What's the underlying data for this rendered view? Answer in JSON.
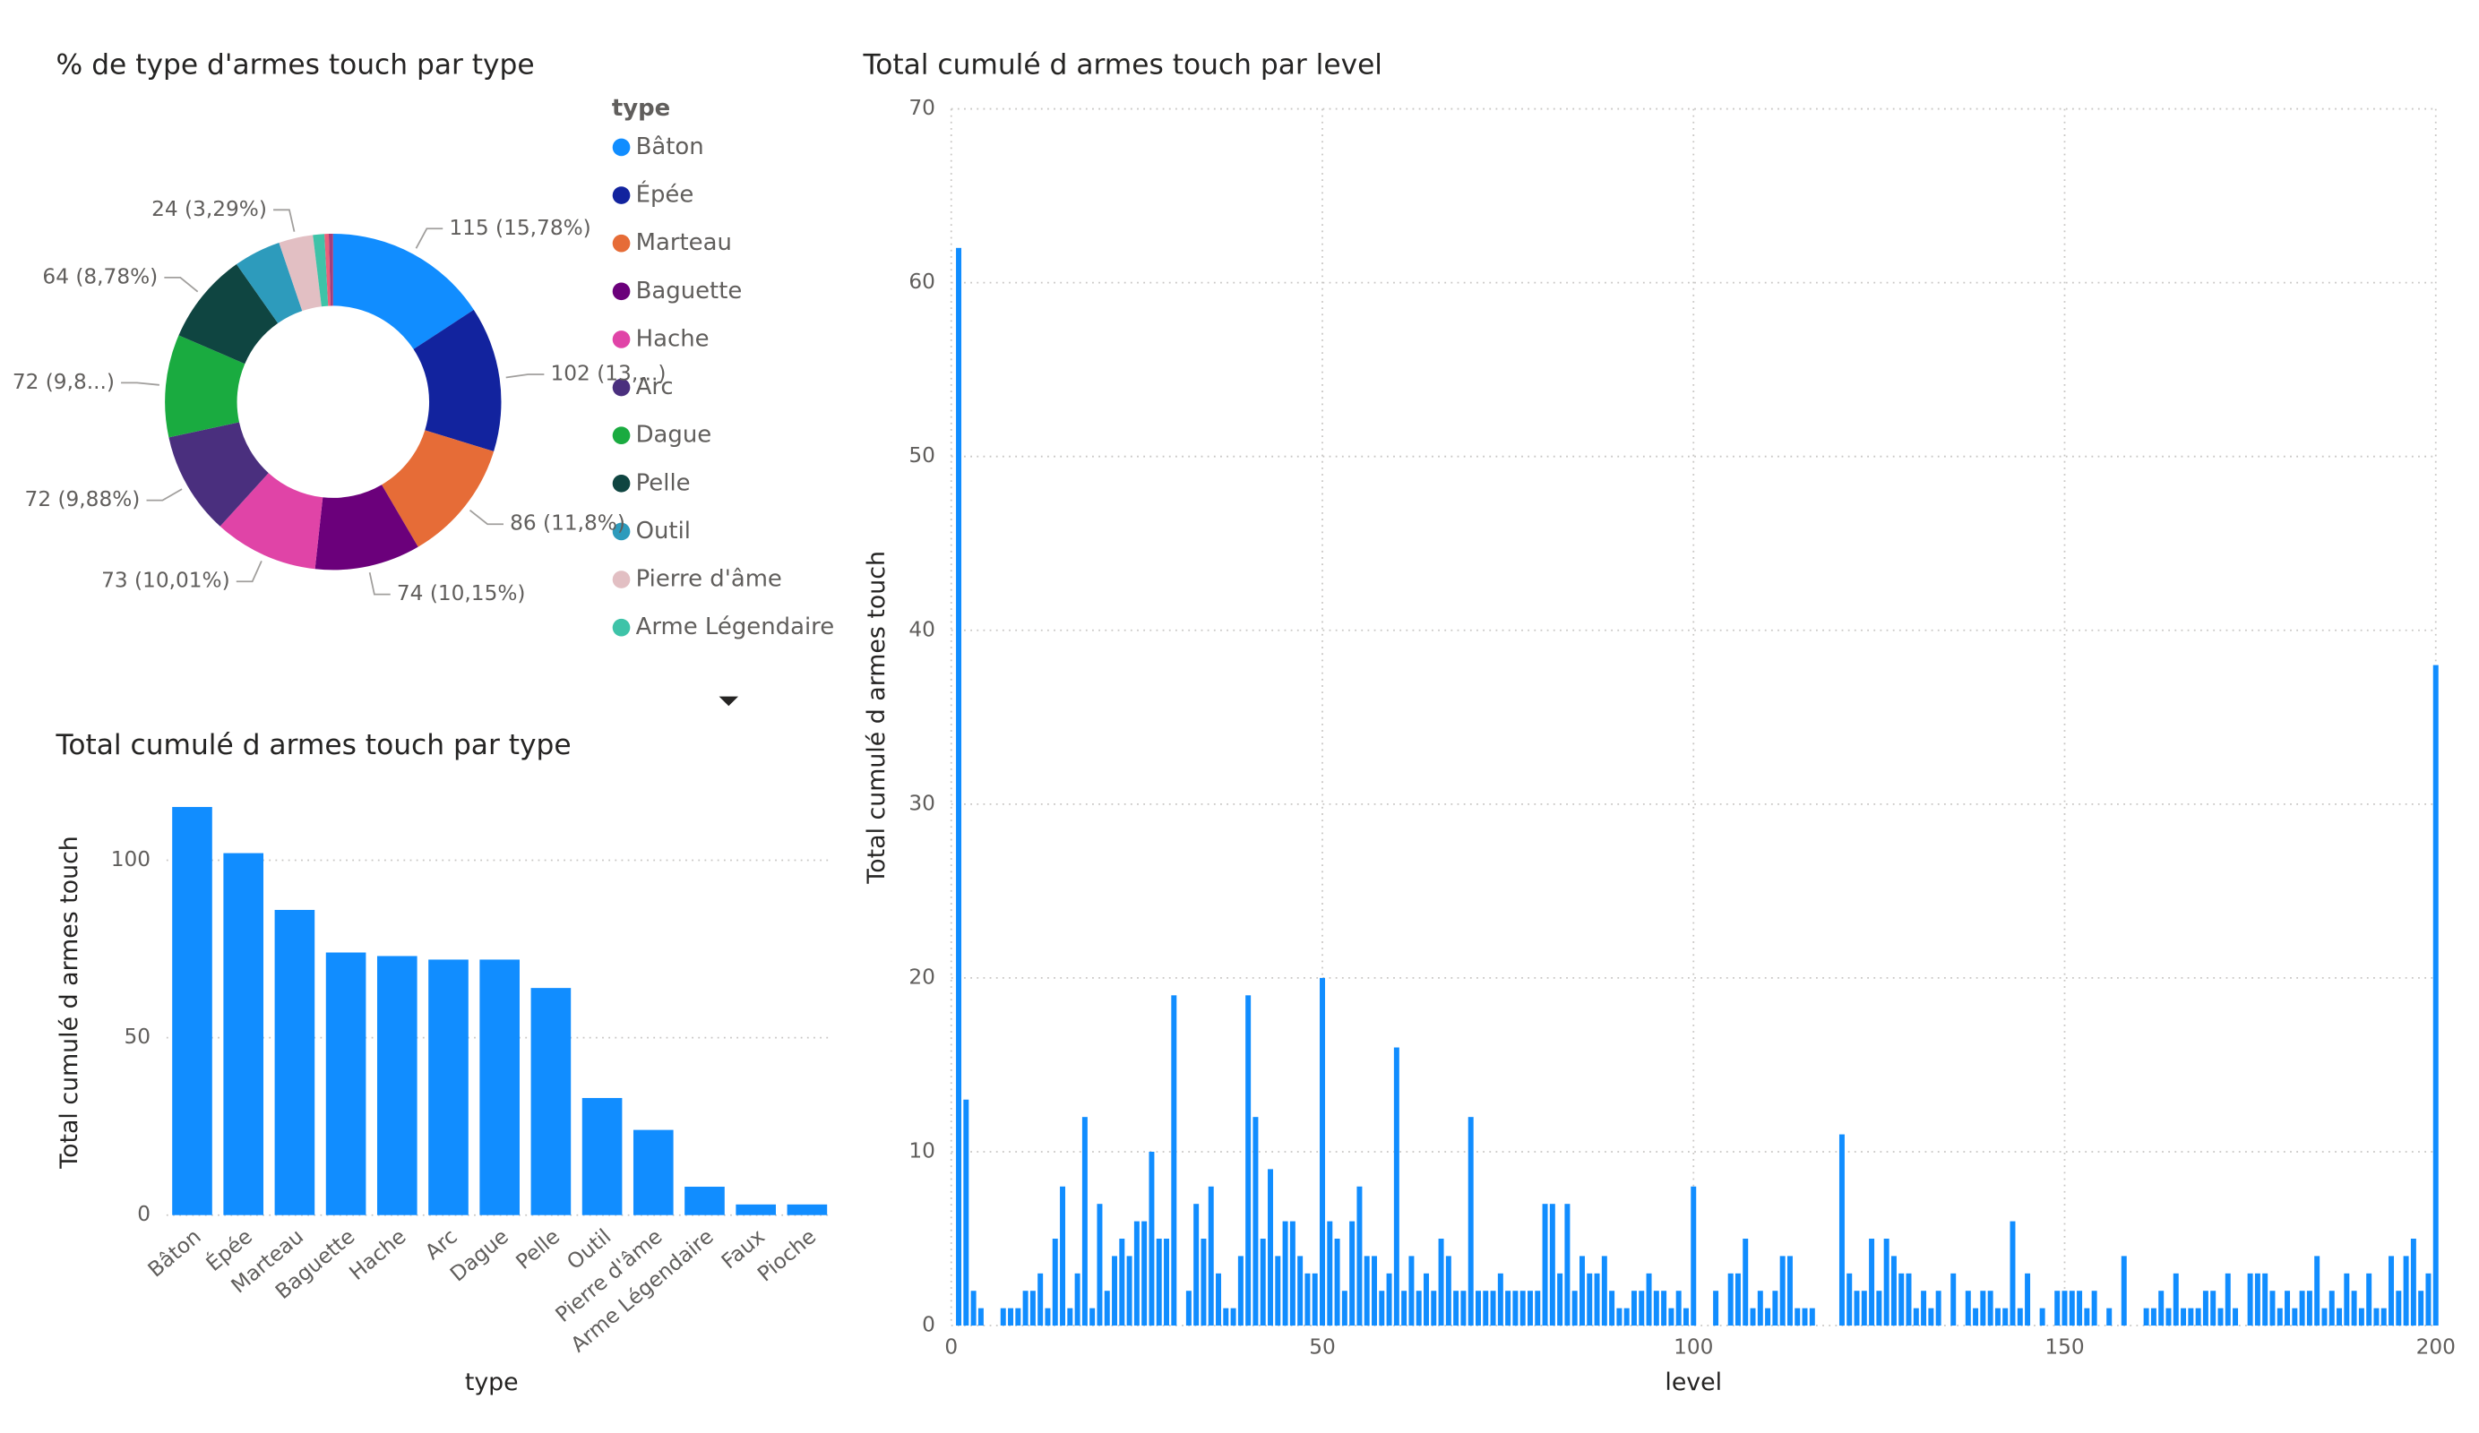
{
  "chart_data": [
    {
      "type": "donut",
      "title": "% de type d'armes touch par type",
      "legend_title": "type",
      "categories": [
        "Bâton",
        "Épée",
        "Marteau",
        "Baguette",
        "Hache",
        "Arc",
        "Dague",
        "Pelle",
        "Outil",
        "Pierre d'âme",
        "Arme Légendaire",
        "Faux",
        "Pioche"
      ],
      "values": [
        115,
        102,
        86,
        74,
        73,
        72,
        72,
        64,
        33,
        24,
        8,
        3,
        3
      ],
      "value_labels": [
        "115 (15,78%)",
        "102 (13,...)",
        "86 (11,8%)",
        "74 (10,15%)",
        "73 (10,01%)",
        "72 (9,88%)",
        "72 (9,8...)",
        "64 (8,78%)",
        null,
        "24 (3,29%)",
        null,
        null,
        null
      ],
      "colors": [
        "#118dff",
        "#12239e",
        "#e66c37",
        "#6b007b",
        "#e044a7",
        "#4a2f7e",
        "#1aab40",
        "#0f4541",
        "#2d9bbc",
        "#e2bfc3",
        "#3ec3a8",
        "#e9607a",
        "#a13f7d"
      ],
      "legend": "right"
    },
    {
      "type": "bar",
      "title": "Total cumulé d armes touch par type",
      "xlabel": "type",
      "ylabel": "Total cumulé d armes touch",
      "categories": [
        "Bâton",
        "Épée",
        "Marteau",
        "Baguette",
        "Hache",
        "Arc",
        "Dague",
        "Pelle",
        "Outil",
        "Pierre d'âme",
        "Arme Légendaire",
        "Faux",
        "Pioche"
      ],
      "values": [
        115,
        102,
        86,
        74,
        73,
        72,
        72,
        64,
        33,
        24,
        8,
        3,
        3
      ],
      "color": "#118dff",
      "ylim": [
        0,
        120
      ],
      "yticks": [
        0,
        50,
        100
      ],
      "grid": true
    },
    {
      "type": "bar",
      "title": "Total cumulé d armes touch par level",
      "xlabel": "level",
      "ylabel": "Total cumulé d armes touch",
      "x": [
        1,
        2,
        3,
        4,
        7,
        8,
        9,
        10,
        11,
        12,
        13,
        14,
        15,
        16,
        17,
        18,
        19,
        20,
        21,
        22,
        23,
        24,
        25,
        26,
        27,
        28,
        29,
        30,
        32,
        33,
        34,
        35,
        36,
        37,
        38,
        39,
        40,
        41,
        42,
        43,
        44,
        45,
        46,
        47,
        48,
        49,
        50,
        51,
        52,
        53,
        54,
        55,
        56,
        57,
        58,
        59,
        60,
        61,
        62,
        63,
        64,
        65,
        66,
        67,
        68,
        69,
        70,
        71,
        72,
        73,
        74,
        75,
        76,
        77,
        78,
        79,
        80,
        81,
        82,
        83,
        84,
        85,
        86,
        87,
        88,
        89,
        90,
        91,
        92,
        93,
        94,
        95,
        96,
        97,
        98,
        99,
        100,
        103,
        105,
        106,
        107,
        108,
        109,
        110,
        111,
        112,
        113,
        114,
        115,
        116,
        120,
        121,
        122,
        123,
        124,
        125,
        126,
        127,
        128,
        129,
        130,
        131,
        132,
        133,
        135,
        137,
        138,
        139,
        140,
        141,
        142,
        143,
        144,
        145,
        147,
        149,
        150,
        151,
        152,
        153,
        154,
        156,
        158,
        161,
        162,
        163,
        164,
        165,
        166,
        167,
        168,
        169,
        170,
        171,
        172,
        173,
        175,
        176,
        177,
        178,
        179,
        180,
        181,
        182,
        183,
        184,
        185,
        186,
        187,
        188,
        189,
        190,
        191,
        192,
        193,
        194,
        195,
        196,
        197,
        198,
        199,
        200
      ],
      "values": [
        62,
        13,
        2,
        1,
        1,
        1,
        1,
        2,
        2,
        3,
        1,
        5,
        8,
        1,
        3,
        12,
        1,
        7,
        2,
        4,
        5,
        4,
        6,
        6,
        10,
        5,
        5,
        19,
        2,
        7,
        5,
        8,
        3,
        1,
        1,
        4,
        19,
        12,
        5,
        9,
        4,
        6,
        6,
        4,
        3,
        3,
        20,
        6,
        5,
        2,
        6,
        8,
        4,
        4,
        2,
        3,
        16,
        2,
        4,
        2,
        3,
        2,
        5,
        4,
        2,
        2,
        12,
        2,
        2,
        2,
        3,
        2,
        2,
        2,
        2,
        2,
        7,
        7,
        3,
        7,
        2,
        4,
        3,
        3,
        4,
        2,
        1,
        1,
        2,
        2,
        3,
        2,
        2,
        1,
        2,
        1,
        8,
        2,
        3,
        3,
        5,
        1,
        2,
        1,
        2,
        4,
        4,
        1,
        1,
        1,
        11,
        3,
        2,
        2,
        5,
        2,
        5,
        4,
        3,
        3,
        1,
        2,
        1,
        2,
        3,
        2,
        1,
        2,
        2,
        1,
        1,
        6,
        1,
        3,
        1,
        2,
        2,
        2,
        2,
        1,
        2,
        1,
        4,
        1,
        1,
        2,
        1,
        3,
        1,
        1,
        1,
        2,
        2,
        1,
        3,
        1,
        3,
        3,
        3,
        2,
        1,
        2,
        1,
        2,
        2,
        4,
        1,
        2,
        1,
        3,
        2,
        1,
        3,
        1,
        1,
        4,
        2,
        4,
        5,
        2,
        3,
        38
      ],
      "color": "#118dff",
      "xlim": [
        0,
        200
      ],
      "xticks": [
        0,
        50,
        100,
        150,
        200
      ],
      "ylim": [
        0,
        70
      ],
      "yticks": [
        0,
        10,
        20,
        30,
        40,
        50,
        60,
        70
      ],
      "grid": true
    }
  ]
}
